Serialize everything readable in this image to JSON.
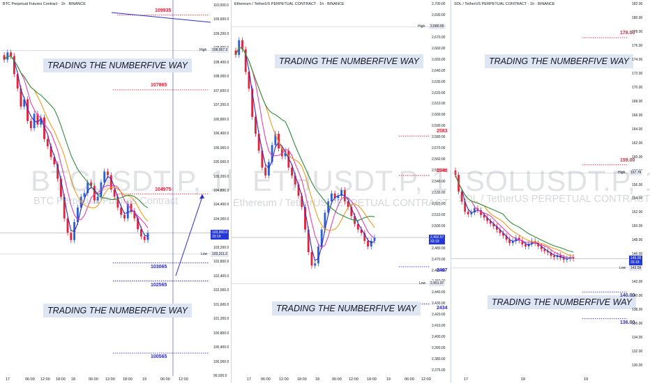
{
  "colors": {
    "up": "#2f5fd6",
    "down": "#e4233b",
    "level_red": "#e4233b",
    "level_blue": "#2c2cc9",
    "ma_fast": "#2c2cc9",
    "ma_mid": "#e040b0",
    "ma_slow": "#f39a1e",
    "ma_long": "#2e8b3a",
    "banner_bg": "#dde6f2"
  },
  "banner_text": "TRADING THE NUMBERFIVE WAY",
  "panels": [
    {
      "id": "btc",
      "title": "BTC Perpetual Futures Contract · 1h · BINANCE",
      "watermark_big": "BTCUSDT.P, 1h",
      "watermark_small": "BTC Perpetual Futures Contract",
      "axis_ticks": [
        "110,000.0",
        "109,600.0",
        "109,200.0",
        "108,800.0",
        "108,400.0",
        "108,000.0",
        "107,600.0",
        "107,200.0",
        "106,800.0",
        "106,400.0",
        "106,000.0",
        "105,600.0",
        "105,200.0",
        "104,800.0",
        "104,400.0",
        "104,000.0",
        "103,600.0",
        "103,200.0",
        "102,800.0",
        "102,400.0",
        "102,000.0",
        "101,600.0",
        "101,200.0",
        "100,800.0",
        "100,400.0",
        "100,000.0",
        "99,930.0"
      ],
      "price_tag": {
        "value": "103,900.0",
        "sub": "33:19"
      },
      "high": {
        "label": "High",
        "value": "108,957.3"
      },
      "low": {
        "label": "Low",
        "value": "103,311.3"
      },
      "levels": [
        {
          "value": "109935",
          "color": "red"
        },
        {
          "value": "107865",
          "color": "red"
        },
        {
          "value": "104975",
          "color": "red"
        },
        {
          "value": "103065",
          "color": "blue"
        },
        {
          "value": "102565",
          "color": "blue"
        },
        {
          "value": "100565",
          "color": "blue"
        }
      ],
      "time_labels": [
        "17",
        "06:00",
        "12:00",
        "18:00",
        "18",
        "06:00",
        "12:00",
        "18:00",
        "19",
        "06:00",
        "12:00"
      ]
    },
    {
      "id": "eth",
      "title": "Ethereum / TetherUS PERPETUAL CONTRACT · 1h · BINANCE",
      "watermark_big": "ETHUSDT.P, 1h",
      "watermark_small": "Ethereum / TetherUS PERPETUAL CONTRACT",
      "axis_ticks": [
        "2,700.00",
        "2,690.00",
        "2,680.00",
        "2,670.00",
        "2,660.00",
        "2,650.00",
        "2,640.00",
        "2,630.00",
        "2,620.00",
        "2,610.00",
        "2,600.00",
        "2,590.00",
        "2,580.00",
        "2,570.00",
        "2,560.00",
        "2,550.00",
        "2,540.00",
        "2,530.00",
        "2,520.00",
        "2,510.00",
        "2,500.00",
        "2,490.00",
        "2,480.00",
        "2,470.00",
        "2,460.00",
        "2,450.00",
        "2,440.00",
        "2,430.00",
        "2,420.00",
        "2,410.00",
        "2,400.00",
        "2,390.00",
        "2,380.00",
        "2,375.00"
      ],
      "price_tag": {
        "value": "2,492.57",
        "sub": "33:19"
      },
      "high": {
        "label": "High",
        "value": "2,680.00"
      },
      "low": {
        "label": "Low",
        "value": "2,451.97"
      },
      "levels": [
        {
          "value": "2583",
          "color": "red"
        },
        {
          "value": "2548",
          "color": "red"
        },
        {
          "value": "2467",
          "color": "blue"
        },
        {
          "value": "2434",
          "color": "blue"
        }
      ],
      "time_labels": [
        "17",
        "06:00",
        "12:00",
        "18:00",
        "18",
        "06:00",
        "12:00",
        "18:00",
        "19",
        "06:00",
        "12:00"
      ]
    },
    {
      "id": "sol",
      "title": "SOL / TetherUS PERPETUAL CONTRACT · 1h · BINANCE",
      "watermark_big": "SOLUSDT.P, 1h",
      "watermark_small": "SOL / TetherUS PERPETUAL CONTRACT",
      "axis_ticks": [
        "182.00",
        "180.00",
        "178.00",
        "176.00",
        "174.00",
        "172.00",
        "170.00",
        "168.00",
        "166.00",
        "164.00",
        "162.00",
        "160.00",
        "158.00",
        "156.00",
        "154.00",
        "152.00",
        "150.00",
        "148.00",
        "146.00",
        "144.00",
        "142.00",
        "140.00",
        "138.00",
        "136.00",
        "134.00",
        "132.00",
        "130.00"
      ],
      "price_tag": {
        "value": "145.00",
        "sub": "33:19"
      },
      "high": {
        "label": "High",
        "value": "157.78"
      },
      "low": {
        "label": "Low",
        "value": "143.58"
      },
      "levels": [
        {
          "value": "178.00",
          "color": "red"
        },
        {
          "value": "159.00",
          "color": "red"
        },
        {
          "value": "140.00",
          "color": "blue"
        },
        {
          "value": "136.00",
          "color": "blue"
        }
      ],
      "time_labels": [
        "17",
        "18",
        "19"
      ]
    }
  ],
  "chart_data": [
    {
      "type": "candlestick",
      "title": "BTC Perpetual Futures Contract · 1h · BINANCE",
      "ylim": [
        99930,
        110200
      ],
      "close": [
        108700,
        108900,
        108800,
        108300,
        107900,
        107400,
        107600,
        107000,
        106800,
        107200,
        106900,
        107100,
        106500,
        106300,
        106000,
        105800,
        105400,
        104900,
        104300,
        103900,
        103700,
        104200,
        104600,
        104900,
        105000,
        105300,
        105200,
        104800,
        104900,
        105300,
        105600,
        105500,
        105100,
        104900,
        104600,
        104400,
        104300,
        104700,
        104500,
        104300,
        104000,
        103800,
        103700,
        103900
      ],
      "levels": [
        109935,
        107865,
        104975,
        103065,
        102565,
        100565
      ]
    },
    {
      "type": "candlestick",
      "title": "Ethereum / TetherUS PERPETUAL CONTRACT · 1h · BINANCE",
      "ylim": [
        2375,
        2700
      ],
      "close": [
        2655,
        2668,
        2660,
        2640,
        2625,
        2600,
        2585,
        2570,
        2555,
        2548,
        2560,
        2575,
        2585,
        2572,
        2565,
        2570,
        2555,
        2548,
        2540,
        2530,
        2520,
        2500,
        2480,
        2468,
        2470,
        2485,
        2500,
        2515,
        2525,
        2532,
        2528,
        2530,
        2535,
        2525,
        2520,
        2512,
        2505,
        2500,
        2497,
        2490,
        2485,
        2490,
        2493
      ],
      "levels": [
        2583,
        2548,
        2467,
        2434
      ]
    },
    {
      "type": "candlestick",
      "title": "SOL / TetherUS PERPETUAL CONTRACT · 1h · BINANCE",
      "ylim": [
        129,
        183
      ],
      "close": [
        157.5,
        155,
        153.5,
        152,
        151.6,
        151.9,
        152.5,
        152.2,
        151.5,
        151.1,
        150.6,
        150.2,
        149.8,
        149.3,
        148.8,
        148.4,
        147.8,
        147.3,
        147.6,
        148.1,
        147.7,
        147.1,
        146.8,
        147.2,
        147.6,
        147.3,
        146.8,
        146.4,
        146.1,
        145.9,
        145.4,
        145.2,
        145.5,
        145.1,
        144.8,
        145,
        145.2,
        145
      ],
      "levels": [
        178,
        159,
        140,
        136
      ]
    }
  ]
}
